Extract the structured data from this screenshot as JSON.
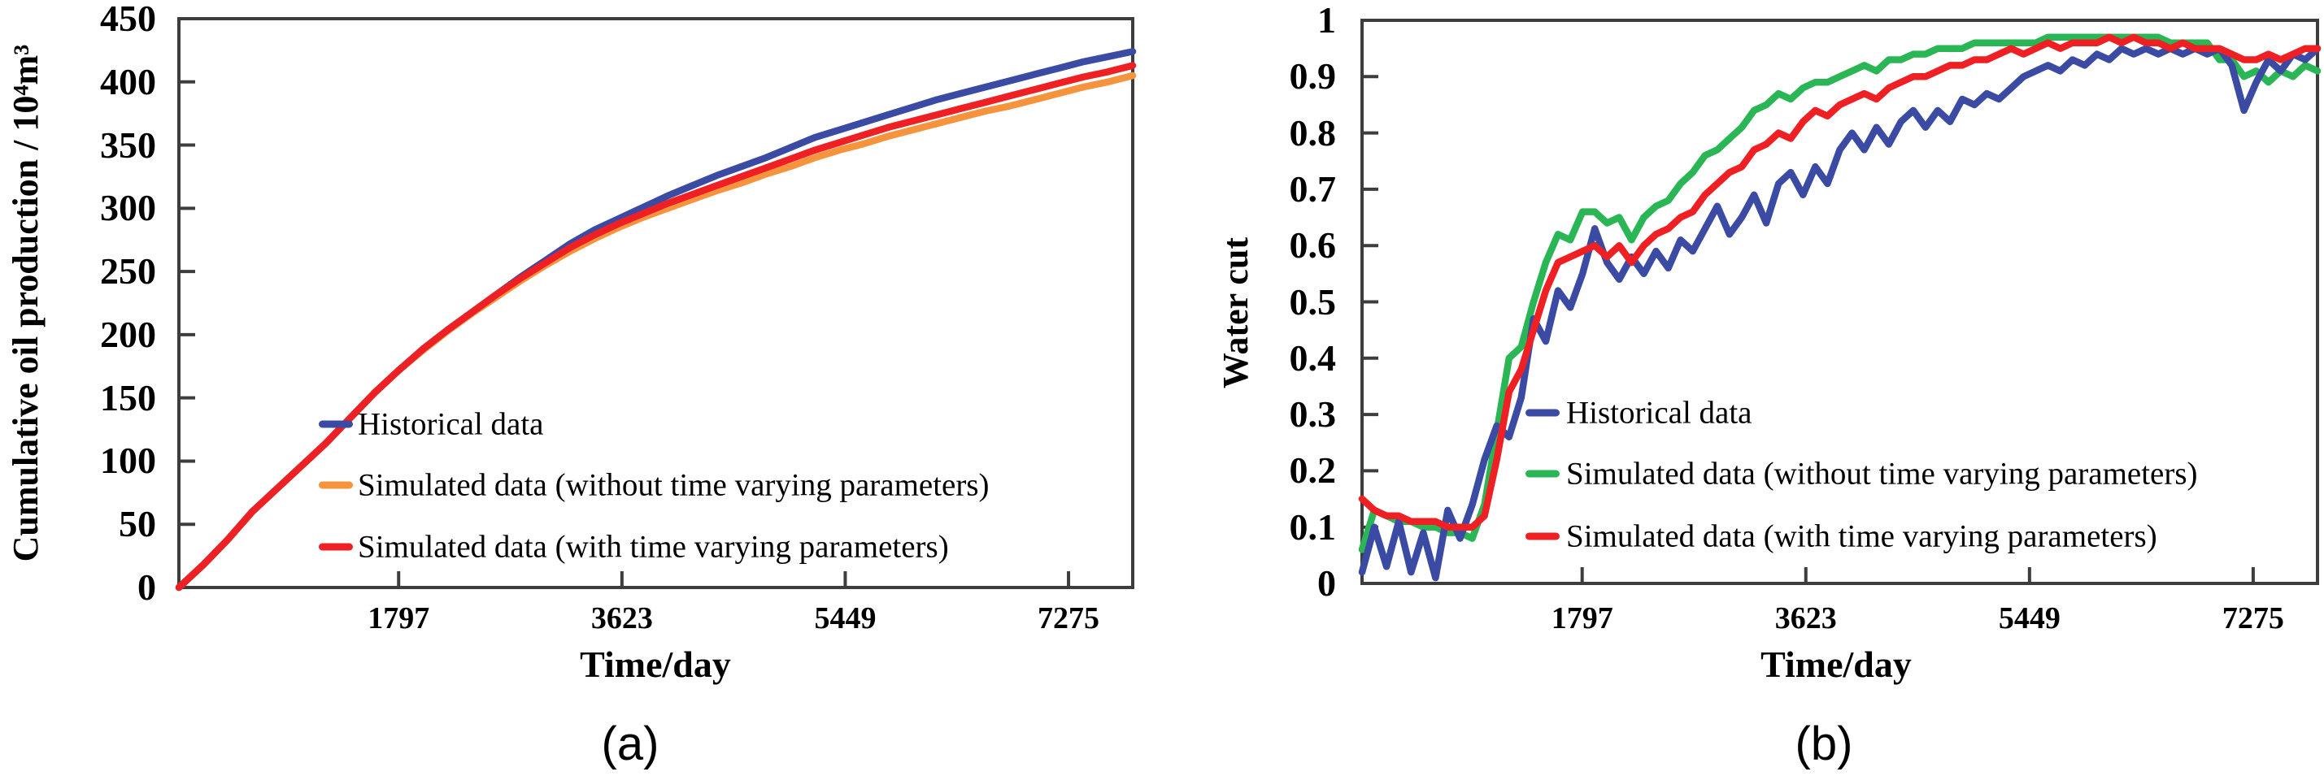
{
  "figure": {
    "captions": [
      "(a)",
      "(b)"
    ],
    "background": "#ffffff",
    "axis_color": "#3d3d3d",
    "text_color": "#000000"
  },
  "chart_data": [
    {
      "type": "line",
      "panel": "a",
      "title": "",
      "xlabel": "Time/day",
      "ylabel": "Cumulative oil production / 10⁴m³",
      "xlim": [
        0,
        7800
      ],
      "ylim": [
        0,
        450
      ],
      "grid": false,
      "legend_position": "inside lower-middle-left",
      "xtick_values": [
        1797,
        3623,
        5449,
        7275
      ],
      "xtick_labels": [
        "1797",
        "3623",
        "5449",
        "7275"
      ],
      "ytick_values": [
        450,
        400,
        350,
        300,
        250,
        200,
        150,
        100,
        50,
        0
      ],
      "ytick_labels": [
        "450",
        "400",
        "350",
        "300",
        "250",
        "200",
        "150",
        "100",
        "50",
        "0"
      ],
      "x": [
        0,
        200,
        400,
        600,
        800,
        1000,
        1200,
        1400,
        1600,
        1800,
        2000,
        2200,
        2400,
        2600,
        2800,
        3000,
        3200,
        3400,
        3600,
        3800,
        4000,
        4200,
        4400,
        4600,
        4800,
        5000,
        5200,
        5400,
        5600,
        5800,
        6000,
        6200,
        6400,
        6600,
        6800,
        7000,
        7200,
        7400,
        7600,
        7800
      ],
      "series": [
        {
          "name": "Historical data",
          "color": "#3b4ba4",
          "y": [
            0,
            18,
            38,
            60,
            78,
            96,
            114,
            134,
            154,
            172,
            189,
            204,
            218,
            232,
            246,
            259,
            272,
            283,
            292,
            301,
            310,
            318,
            326,
            333,
            340,
            348,
            356,
            362,
            368,
            374,
            380,
            386,
            391,
            396,
            401,
            406,
            411,
            416,
            420,
            424
          ]
        },
        {
          "name": "Simulated data (without time varying parameters)",
          "color": "#f6933d",
          "y": [
            0,
            18,
            38,
            60,
            78,
            96,
            114,
            134,
            154,
            172,
            188,
            203,
            217,
            230,
            243,
            255,
            266,
            276,
            285,
            293,
            300,
            307,
            314,
            320,
            327,
            333,
            340,
            346,
            351,
            357,
            362,
            367,
            372,
            377,
            381,
            386,
            391,
            396,
            400,
            405
          ]
        },
        {
          "name": "Simulated data (with time varying parameters)",
          "color": "#ee2024",
          "y": [
            0,
            18,
            38,
            60,
            78,
            96,
            114,
            134,
            154,
            172,
            189,
            204,
            218,
            232,
            245,
            257,
            269,
            279,
            288,
            296,
            304,
            311,
            318,
            325,
            332,
            339,
            346,
            352,
            358,
            364,
            369,
            374,
            379,
            384,
            389,
            394,
            399,
            404,
            408,
            413
          ]
        }
      ]
    },
    {
      "type": "line",
      "panel": "b",
      "title": "",
      "xlabel": "Time/day",
      "ylabel": "Water cut",
      "xlim": [
        0,
        7800
      ],
      "ylim": [
        0,
        1
      ],
      "grid": false,
      "legend_position": "inside lower-right",
      "xtick_values": [
        1797,
        3623,
        5449,
        7275
      ],
      "xtick_labels": [
        "1797",
        "3623",
        "5449",
        "7275"
      ],
      "ytick_values": [
        1,
        0.9,
        0.8,
        0.7,
        0.6,
        0.5,
        0.4,
        0.3,
        0.2,
        0.1,
        0
      ],
      "ytick_labels": [
        "1",
        "0.9",
        "0.8",
        "0.7",
        "0.6",
        "0.5",
        "0.4",
        "0.3",
        "0.2",
        "0.1",
        "0"
      ],
      "x": [
        0,
        100,
        200,
        300,
        400,
        500,
        600,
        700,
        800,
        900,
        1000,
        1100,
        1200,
        1300,
        1400,
        1500,
        1600,
        1700,
        1800,
        1900,
        2000,
        2100,
        2200,
        2300,
        2400,
        2500,
        2600,
        2700,
        2800,
        2900,
        3000,
        3100,
        3200,
        3300,
        3400,
        3500,
        3600,
        3700,
        3800,
        3900,
        4000,
        4100,
        4200,
        4300,
        4400,
        4500,
        4600,
        4700,
        4800,
        4900,
        5000,
        5100,
        5200,
        5300,
        5400,
        5500,
        5600,
        5700,
        5800,
        5900,
        6000,
        6100,
        6200,
        6300,
        6400,
        6500,
        6600,
        6700,
        6800,
        6900,
        7000,
        7100,
        7200,
        7300,
        7400,
        7500,
        7600,
        7700,
        7800
      ],
      "series": [
        {
          "name": "Historical data",
          "color": "#3b4ba4",
          "y": [
            0.02,
            0.1,
            0.03,
            0.11,
            0.02,
            0.09,
            0.01,
            0.13,
            0.08,
            0.14,
            0.22,
            0.28,
            0.26,
            0.33,
            0.47,
            0.43,
            0.52,
            0.49,
            0.55,
            0.63,
            0.57,
            0.54,
            0.58,
            0.55,
            0.59,
            0.56,
            0.61,
            0.59,
            0.63,
            0.67,
            0.62,
            0.65,
            0.69,
            0.64,
            0.71,
            0.73,
            0.69,
            0.74,
            0.71,
            0.77,
            0.8,
            0.77,
            0.81,
            0.78,
            0.82,
            0.84,
            0.81,
            0.84,
            0.82,
            0.86,
            0.85,
            0.87,
            0.86,
            0.88,
            0.9,
            0.91,
            0.92,
            0.91,
            0.93,
            0.92,
            0.94,
            0.93,
            0.95,
            0.94,
            0.95,
            0.94,
            0.95,
            0.94,
            0.95,
            0.94,
            0.95,
            0.92,
            0.84,
            0.89,
            0.93,
            0.91,
            0.94,
            0.93,
            0.95
          ]
        },
        {
          "name": "Simulated data (without time varying parameters)",
          "color": "#2bb656",
          "y": [
            0.06,
            0.13,
            0.12,
            0.11,
            0.11,
            0.1,
            0.1,
            0.09,
            0.09,
            0.08,
            0.14,
            0.27,
            0.4,
            0.42,
            0.5,
            0.57,
            0.62,
            0.61,
            0.66,
            0.66,
            0.64,
            0.65,
            0.61,
            0.65,
            0.67,
            0.68,
            0.71,
            0.73,
            0.76,
            0.77,
            0.79,
            0.81,
            0.84,
            0.85,
            0.87,
            0.86,
            0.88,
            0.89,
            0.89,
            0.9,
            0.91,
            0.92,
            0.91,
            0.93,
            0.93,
            0.94,
            0.94,
            0.95,
            0.95,
            0.95,
            0.96,
            0.96,
            0.96,
            0.96,
            0.96,
            0.96,
            0.97,
            0.97,
            0.97,
            0.97,
            0.97,
            0.97,
            0.97,
            0.97,
            0.97,
            0.97,
            0.96,
            0.96,
            0.96,
            0.96,
            0.93,
            0.93,
            0.9,
            0.91,
            0.89,
            0.91,
            0.9,
            0.92,
            0.91
          ]
        },
        {
          "name": "Simulated data (with time varying parameters)",
          "color": "#ee2024",
          "y": [
            0.15,
            0.13,
            0.12,
            0.12,
            0.11,
            0.11,
            0.11,
            0.1,
            0.1,
            0.1,
            0.12,
            0.22,
            0.34,
            0.38,
            0.45,
            0.52,
            0.57,
            0.58,
            0.59,
            0.6,
            0.58,
            0.6,
            0.57,
            0.6,
            0.62,
            0.63,
            0.65,
            0.66,
            0.69,
            0.71,
            0.73,
            0.74,
            0.77,
            0.78,
            0.8,
            0.79,
            0.82,
            0.84,
            0.83,
            0.85,
            0.86,
            0.87,
            0.86,
            0.88,
            0.89,
            0.9,
            0.9,
            0.91,
            0.92,
            0.92,
            0.93,
            0.93,
            0.94,
            0.95,
            0.94,
            0.95,
            0.96,
            0.95,
            0.96,
            0.96,
            0.96,
            0.97,
            0.96,
            0.97,
            0.96,
            0.96,
            0.95,
            0.96,
            0.95,
            0.95,
            0.95,
            0.94,
            0.93,
            0.93,
            0.94,
            0.93,
            0.94,
            0.95,
            0.95
          ]
        }
      ]
    }
  ]
}
